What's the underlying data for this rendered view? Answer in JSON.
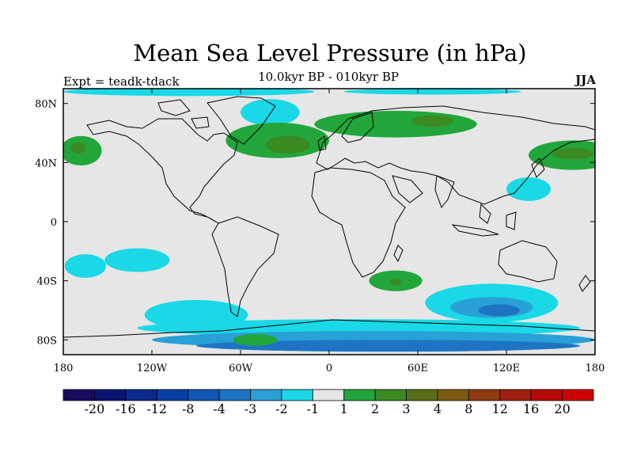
{
  "title": "Mean Sea Level Pressure (in hPa)",
  "subtitle": "10.0kyr BP - 010kyr BP",
  "experiment": "Expt = teadk-tdack",
  "season": "JJA",
  "map": {
    "projection": "cylindrical equidistant",
    "lon_range": [
      -180,
      180
    ],
    "lat_range": [
      -90,
      90
    ],
    "background_color": "#e6e6e6",
    "coastline_color": "#000000"
  },
  "x_ticks": [
    {
      "lon": -180,
      "label": "180"
    },
    {
      "lon": -120,
      "label": "120W"
    },
    {
      "lon": -60,
      "label": "60W"
    },
    {
      "lon": 0,
      "label": "0"
    },
    {
      "lon": 60,
      "label": "60E"
    },
    {
      "lon": 120,
      "label": "120E"
    },
    {
      "lon": 180,
      "label": "180"
    }
  ],
  "y_ticks": [
    {
      "lat": 80,
      "label": "80N"
    },
    {
      "lat": 40,
      "label": "40N"
    },
    {
      "lat": 0,
      "label": "0"
    },
    {
      "lat": -40,
      "label": "40S"
    },
    {
      "lat": -80,
      "label": "80S"
    }
  ],
  "colorbar": {
    "colors": [
      "#1a0a5e",
      "#0c1473",
      "#0a2a8c",
      "#0b3ea5",
      "#1257b4",
      "#1e74c2",
      "#29a0d6",
      "#1ad8e6",
      "#e6e6e6",
      "#22a63c",
      "#3c8a22",
      "#5a6e1a",
      "#7a5a0e",
      "#8c3c10",
      "#a01e10",
      "#b80808",
      "#cc0000"
    ],
    "labels": [
      "-20",
      "-16",
      "-12",
      "-8",
      "-4",
      "-3",
      "-2",
      "-1",
      "1",
      "2",
      "3",
      "4",
      "8",
      "12",
      "16",
      "20"
    ]
  },
  "regions": [
    {
      "level": "-2",
      "color": "#1ad8e6",
      "lon": -130,
      "lat": -26,
      "rlon": 22,
      "rlat": 8
    },
    {
      "level": "-2",
      "color": "#1ad8e6",
      "lon": -165,
      "lat": -30,
      "rlon": 14,
      "rlat": 8
    },
    {
      "level": "-2",
      "color": "#1ad8e6",
      "lon": -90,
      "lat": -63,
      "rlon": 35,
      "rlat": 10
    },
    {
      "level": "-2",
      "color": "#1ad8e6",
      "lon": 110,
      "lat": -55,
      "rlon": 45,
      "rlat": 13
    },
    {
      "level": "-3",
      "color": "#29a0d6",
      "lon": 110,
      "lat": -58,
      "rlon": 28,
      "rlat": 7
    },
    {
      "level": "-4",
      "color": "#1e74c2",
      "lon": 115,
      "lat": -60,
      "rlon": 14,
      "rlat": 4
    },
    {
      "level": "-2",
      "color": "#1ad8e6",
      "lon": 20,
      "lat": -72,
      "rlon": 150,
      "rlat": 6
    },
    {
      "level": "-3",
      "color": "#29a0d6",
      "lon": 30,
      "lat": -80,
      "rlon": 150,
      "rlat": 6
    },
    {
      "level": "-4",
      "color": "#1e74c2",
      "lon": 40,
      "lat": -84,
      "rlon": 130,
      "rlat": 4
    },
    {
      "level": "-2",
      "color": "#1ad8e6",
      "lon": -40,
      "lat": 74,
      "rlon": 20,
      "rlat": 9
    },
    {
      "level": "-2",
      "color": "#1ad8e6",
      "lon": 135,
      "lat": 22,
      "rlon": 15,
      "rlat": 8
    },
    {
      "level": "-2",
      "color": "#1ad8e6",
      "lon": -95,
      "lat": 88,
      "rlon": 85,
      "rlat": 3
    },
    {
      "level": "-2",
      "color": "#1ad8e6",
      "lon": 70,
      "lat": 88,
      "rlon": 60,
      "rlat": 2
    },
    {
      "level": "2",
      "color": "#22a63c",
      "lon": -35,
      "lat": 55,
      "rlon": 35,
      "rlat": 12
    },
    {
      "level": "2",
      "color": "#22a63c",
      "lon": 45,
      "lat": 66,
      "rlon": 55,
      "rlat": 9
    },
    {
      "level": "2",
      "color": "#22a63c",
      "lon": 165,
      "lat": 45,
      "rlon": 30,
      "rlat": 10
    },
    {
      "level": "2",
      "color": "#22a63c",
      "lon": -168,
      "lat": 48,
      "rlon": 14,
      "rlat": 10
    },
    {
      "level": "2",
      "color": "#22a63c",
      "lon": 45,
      "lat": -40,
      "rlon": 18,
      "rlat": 7
    },
    {
      "level": "2",
      "color": "#22a63c",
      "lon": -50,
      "lat": -80,
      "rlon": 15,
      "rlat": 4
    },
    {
      "level": "3",
      "color": "#3c8a22",
      "lon": -28,
      "lat": 52,
      "rlon": 15,
      "rlat": 6
    },
    {
      "level": "3",
      "color": "#3c8a22",
      "lon": 70,
      "lat": 68,
      "rlon": 14,
      "rlat": 4
    },
    {
      "level": "3",
      "color": "#3c8a22",
      "lon": 165,
      "lat": 46,
      "rlon": 14,
      "rlat": 4
    },
    {
      "level": "3",
      "color": "#3c8a22",
      "lon": -170,
      "lat": 50,
      "rlon": 5,
      "rlat": 4
    },
    {
      "level": "3",
      "color": "#3c8a22",
      "lon": 45,
      "lat": -41,
      "rlon": 4,
      "rlat": 2
    }
  ]
}
